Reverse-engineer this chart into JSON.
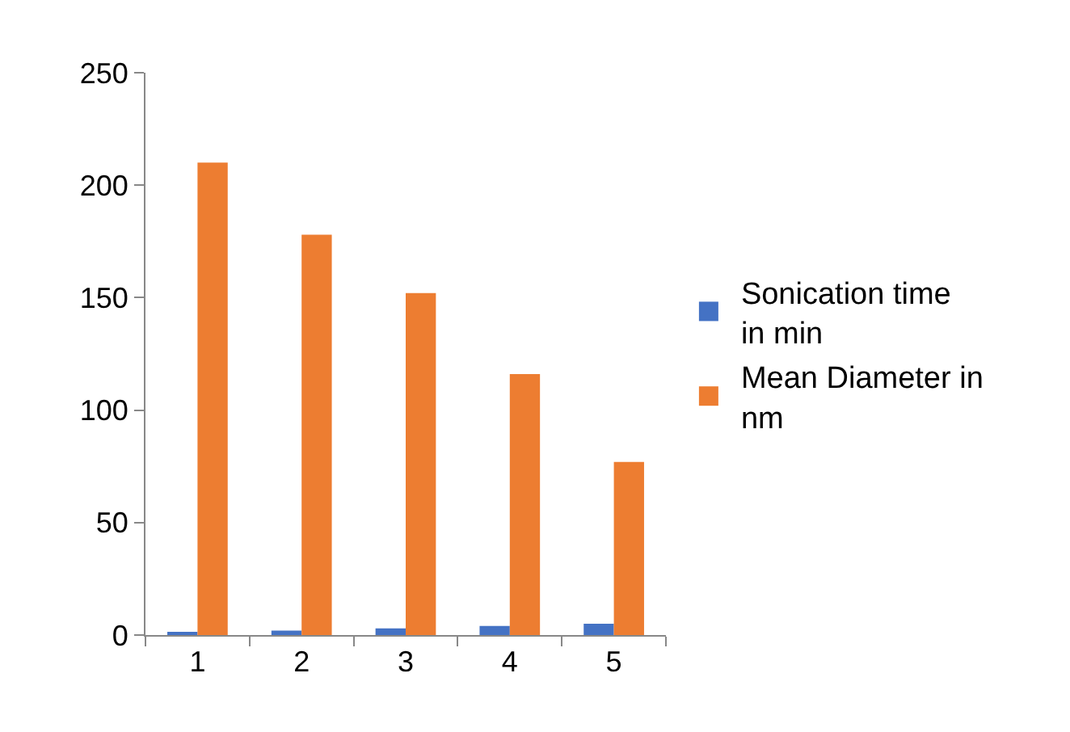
{
  "chart_data": {
    "type": "bar",
    "categories": [
      "1",
      "2",
      "3",
      "4",
      "5"
    ],
    "series": [
      {
        "name": "Sonication time in min",
        "color": "#4472c4",
        "values": [
          1,
          2,
          3,
          4,
          5
        ]
      },
      {
        "name": "Mean Diameter in nm",
        "color": "#ed7d31",
        "values": [
          210,
          178,
          152,
          116,
          77
        ]
      }
    ],
    "ylim": [
      0,
      250
    ],
    "yticks": [
      0,
      50,
      100,
      150,
      200,
      250
    ],
    "grid": false,
    "legend": "right"
  }
}
